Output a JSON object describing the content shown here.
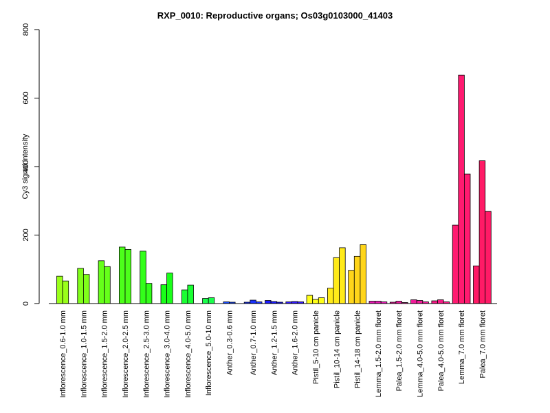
{
  "chart_data": {
    "type": "bar",
    "title": "RXP_0010: Reproductive organs; Os03g0103000_41403",
    "xlabel": "",
    "ylabel": "Cy3 signal intensity",
    "ylim": [
      0,
      800
    ],
    "yticks": [
      0,
      200,
      400,
      600,
      800
    ],
    "grid": false,
    "legend": "none",
    "categories": [
      "Inflorescence_0.6-1.0 mm",
      "Inflorescence_1.0-1.5 mm",
      "Inflorescence_1.5-2.0 mm",
      "Inflorescence_2.0-2.5 mm",
      "Inflorescence_2.5-3.0 mm",
      "Inflorescence_3.0-4.0 mm",
      "Inflorescence_4.0-5.0 mm",
      "Inflorescence_5.0-10 mm",
      "Anther_0.3-0.6 mm",
      "Anther_0.7-1.0 mm",
      "Anther_1.2-1.5 mm",
      "Anther_1.6-2.0 mm",
      "Pistil_5-10 cm panicle",
      "Pistil_10-14 cm panicle",
      "Pistil_14-18 cm panicle",
      "Lemma_1.5-2.0 mm floret",
      "Palea_1.5-2.0 mm floret",
      "Lemma_4.0-5.0 mm floret",
      "Palea_4.0-5.0 mm floret",
      "Lemma_7.0 mm floret",
      "Palea_7.0 mm floret"
    ],
    "groups": [
      {
        "color": "#9aff1a",
        "values": [
          80,
          66
        ]
      },
      {
        "color": "#80ff1a",
        "values": [
          103,
          85
        ]
      },
      {
        "color": "#66ff1a",
        "values": [
          125,
          108
        ]
      },
      {
        "color": "#4cff1a",
        "values": [
          165,
          158
        ]
      },
      {
        "color": "#33ff1a",
        "values": [
          153,
          59
        ]
      },
      {
        "color": "#1aff1a",
        "values": [
          55,
          89
        ]
      },
      {
        "color": "#1aff33",
        "values": [
          40,
          54
        ]
      },
      {
        "color": "#1aff4c",
        "values": [
          15,
          17
        ]
      },
      {
        "color": "#1a4cff",
        "values": [
          5,
          4
        ]
      },
      {
        "color": "#1a33ff",
        "values": [
          4,
          10,
          5
        ]
      },
      {
        "color": "#1a1aff",
        "values": [
          9,
          6,
          4
        ]
      },
      {
        "color": "#331aff",
        "values": [
          5,
          6,
          5
        ]
      },
      {
        "color": "#ffff1a",
        "values": [
          24,
          12,
          17
        ]
      },
      {
        "color": "#ffea1a",
        "values": [
          45,
          134,
          163
        ]
      },
      {
        "color": "#ffd51a",
        "values": [
          97,
          138,
          172
        ]
      },
      {
        "color": "#e61ab3",
        "values": [
          7,
          7,
          5
        ]
      },
      {
        "color": "#e61a9a",
        "values": [
          4,
          7,
          3
        ]
      },
      {
        "color": "#f01a99",
        "values": [
          11,
          9,
          5
        ]
      },
      {
        "color": "#f51a85",
        "values": [
          8,
          11,
          5
        ]
      },
      {
        "color": "#ff1a70",
        "values": [
          229,
          667,
          378
        ]
      },
      {
        "color": "#ff1a66",
        "values": [
          110,
          417,
          269
        ]
      }
    ]
  }
}
